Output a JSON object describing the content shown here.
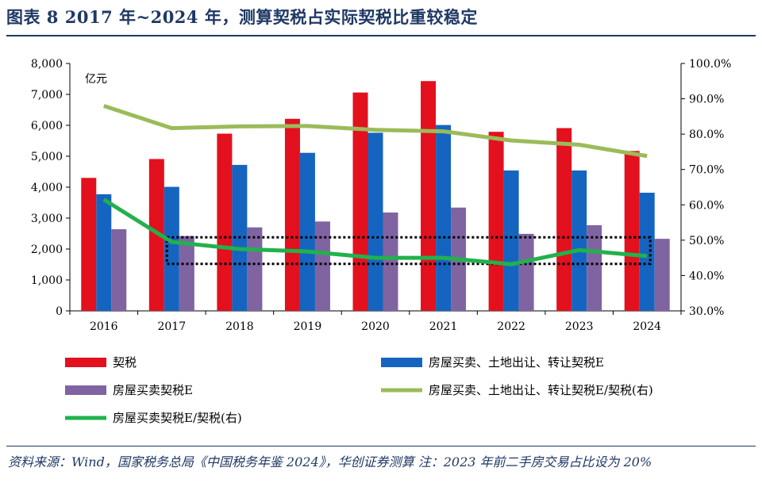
{
  "header": {
    "title": "图表 8   2017 年~2024 年，测算契税占实际契税比重较稳定"
  },
  "footer": {
    "source": "资料来源：Wind，国家税务总局《中国税务年鉴 2024》，华创证券测算  注：2023 年前二手房交易占比设为 20%"
  },
  "chart_data": {
    "type": "bar",
    "categories": [
      "2016",
      "2017",
      "2018",
      "2019",
      "2020",
      "2021",
      "2022",
      "2023",
      "2024"
    ],
    "unit_label": "亿元",
    "ylim_left": [
      0,
      8000
    ],
    "yticks_left": [
      "0",
      "1,000",
      "2,000",
      "3,000",
      "4,000",
      "5,000",
      "6,000",
      "7,000",
      "8,000"
    ],
    "ylim_right": [
      30,
      100
    ],
    "yticks_right": [
      "30.0%",
      "40.0%",
      "50.0%",
      "60.0%",
      "70.0%",
      "80.0%",
      "90.0%",
      "100.0%"
    ],
    "series": [
      {
        "name": "契税",
        "kind": "bar",
        "axis": "left",
        "color": "#e3101e",
        "values": [
          4300,
          4910,
          5730,
          6210,
          7060,
          7430,
          5790,
          5910,
          5170
        ]
      },
      {
        "name": "房屋买卖、土地出让、转让契税E",
        "kind": "bar",
        "axis": "left",
        "color": "#1565c0",
        "values": [
          3770,
          4010,
          4720,
          5110,
          5760,
          6010,
          4540,
          4540,
          3820
        ]
      },
      {
        "name": "房屋买卖契税E",
        "kind": "bar",
        "axis": "left",
        "color": "#8064a2",
        "values": [
          2640,
          2420,
          2700,
          2890,
          3180,
          3340,
          2490,
          2770,
          2330
        ]
      },
      {
        "name": "房屋买卖、土地出让、转让契税E/契税(右)",
        "kind": "line",
        "axis": "right",
        "color": "#9bbb59",
        "values": [
          88.0,
          81.7,
          82.2,
          82.3,
          81.2,
          80.8,
          78.2,
          77.0,
          73.8
        ]
      },
      {
        "name": "房屋买卖契税E/契税(右)",
        "kind": "line",
        "axis": "right",
        "color": "#22b14c",
        "values": [
          61.5,
          49.5,
          47.5,
          46.8,
          45.0,
          45.0,
          43.2,
          47.2,
          45.5
        ]
      }
    ],
    "legend_position": "bottom",
    "grid": false
  }
}
